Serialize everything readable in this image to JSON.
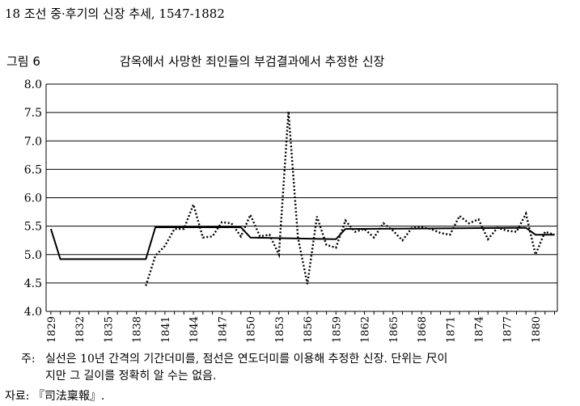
{
  "page": {
    "header": "18  조선 중·후기의 신장 추세, 1547-1882",
    "figure_label": "그림 6",
    "figure_title": "감옥에서 사망한 죄인들의 부검결과에서 추정한 신장",
    "note_lead": "주:",
    "note_line1": "실선은 10년 간격의 기간더미를, 점선은 연도더미를 이용해 추정한 신장. 단위는 尺이",
    "note_line2": "지만 그 길이를 정확히 알 수는 없음.",
    "source": "자료: 『司法稟報』."
  },
  "chart_data": {
    "type": "line",
    "title": "감옥에서 사망한 죄인들의 부검결과에서 추정한 신장",
    "xlabel": "",
    "ylabel": "",
    "xlim": [
      1828.5,
      1882.3
    ],
    "ylim": [
      4.0,
      8.0
    ],
    "yticks": [
      "4.0",
      "4.5",
      "5.0",
      "5.5",
      "6.0",
      "6.5",
      "7.0",
      "7.5",
      "8.0"
    ],
    "xticks": [
      "1829",
      "1832",
      "1835",
      "1838",
      "1841",
      "1844",
      "1847",
      "1850",
      "1853",
      "1856",
      "1859",
      "1862",
      "1865",
      "1868",
      "1871",
      "1874",
      "1877",
      "1880"
    ],
    "grid": "horizontal",
    "series": [
      {
        "style": "solid",
        "points": [
          [
            1829,
            5.45
          ],
          [
            1830,
            4.92
          ],
          [
            1839,
            4.92
          ],
          [
            1840,
            5.48
          ],
          [
            1849,
            5.48
          ],
          [
            1850,
            5.3
          ],
          [
            1859,
            5.27
          ],
          [
            1860,
            5.45
          ],
          [
            1879,
            5.47
          ],
          [
            1880,
            5.35
          ],
          [
            1882,
            5.35
          ]
        ]
      },
      {
        "style": "dotted",
        "points": [
          [
            1839,
            4.45
          ],
          [
            1840,
            4.98
          ],
          [
            1841,
            5.15
          ],
          [
            1842,
            5.45
          ],
          [
            1843,
            5.45
          ],
          [
            1844,
            5.88
          ],
          [
            1845,
            5.3
          ],
          [
            1846,
            5.32
          ],
          [
            1847,
            5.57
          ],
          [
            1848,
            5.55
          ],
          [
            1849,
            5.32
          ],
          [
            1850,
            5.7
          ],
          [
            1851,
            5.32
          ],
          [
            1852,
            5.35
          ],
          [
            1853,
            5.0
          ],
          [
            1854,
            7.52
          ],
          [
            1855,
            5.3
          ],
          [
            1856,
            4.48
          ],
          [
            1857,
            5.67
          ],
          [
            1858,
            5.17
          ],
          [
            1859,
            5.12
          ],
          [
            1860,
            5.6
          ],
          [
            1861,
            5.4
          ],
          [
            1862,
            5.45
          ],
          [
            1863,
            5.3
          ],
          [
            1864,
            5.55
          ],
          [
            1865,
            5.42
          ],
          [
            1866,
            5.25
          ],
          [
            1867,
            5.47
          ],
          [
            1868,
            5.48
          ],
          [
            1869,
            5.45
          ],
          [
            1870,
            5.38
          ],
          [
            1871,
            5.35
          ],
          [
            1872,
            5.68
          ],
          [
            1873,
            5.55
          ],
          [
            1874,
            5.62
          ],
          [
            1875,
            5.27
          ],
          [
            1876,
            5.47
          ],
          [
            1877,
            5.42
          ],
          [
            1878,
            5.4
          ],
          [
            1879,
            5.72
          ],
          [
            1880,
            5.0
          ],
          [
            1881,
            5.4
          ],
          [
            1882,
            5.35
          ]
        ]
      }
    ]
  }
}
